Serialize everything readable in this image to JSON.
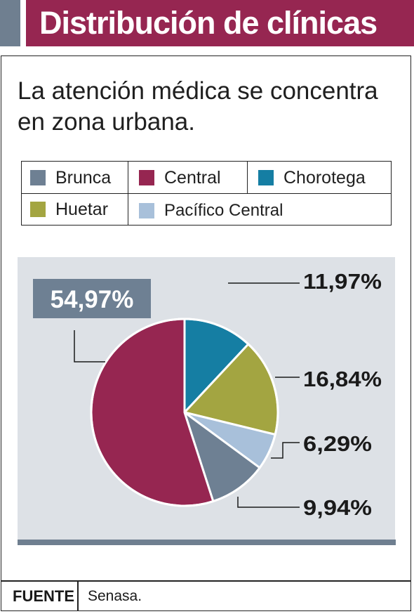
{
  "header": {
    "title": "Distribución de clínicas"
  },
  "subtitle": "La atención médica se concentra en zona urbana.",
  "legend": [
    {
      "label": "Brunca",
      "color": "#6e8093"
    },
    {
      "label": "Central",
      "color": "#962651"
    },
    {
      "label": "Chorotega",
      "color": "#157ea3"
    },
    {
      "label": "Huetar",
      "color": "#a3a541"
    },
    {
      "label": "Pacífico Central",
      "color": "#a8c0da"
    }
  ],
  "chart_data": {
    "type": "pie",
    "title": "",
    "slices": [
      {
        "name": "Chorotega",
        "value": 11.97,
        "label": "11,97%",
        "color": "#157ea3"
      },
      {
        "name": "Huetar",
        "value": 16.84,
        "label": "16,84%",
        "color": "#a3a541"
      },
      {
        "name": "Pacífico Central",
        "value": 6.29,
        "label": "6,29%",
        "color": "#a8c0da"
      },
      {
        "name": "Brunca",
        "value": 9.94,
        "label": "9,94%",
        "color": "#6e8093"
      },
      {
        "name": "Central",
        "value": 54.97,
        "label": "54,97%",
        "color": "#962651"
      }
    ],
    "start": "12 o'clock",
    "direction": "clockwise",
    "highlight_label_color": "#6e8093"
  },
  "footer": {
    "source_label": "FUENTE",
    "source_text": "Senasa."
  }
}
